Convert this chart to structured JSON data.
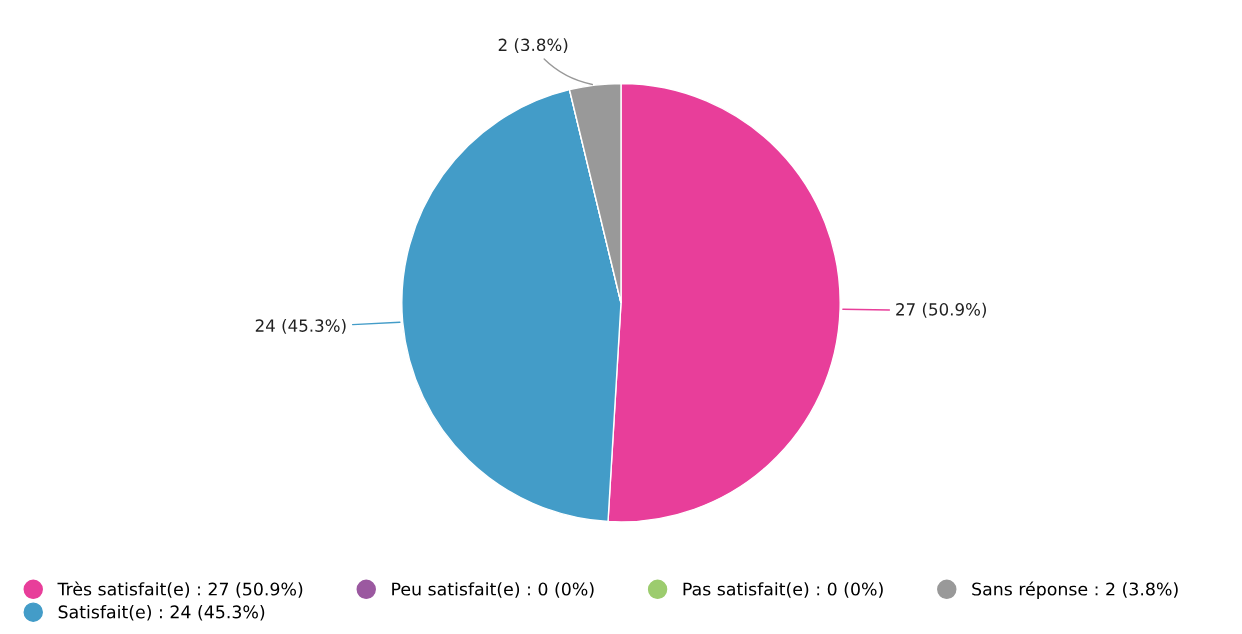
{
  "chart_data": {
    "type": "pie",
    "categories": [
      "Très satisfait(e) : 27 (50.9%)",
      "Satisfait(e) : 24 (45.3%)",
      "Peu satisfait(e) : 0 (0%)",
      "Pas satisfait(e) : 0 (0%)",
      "Sans réponse : 2 (3.8%)"
    ],
    "values": [
      27,
      24,
      0,
      0,
      2
    ],
    "colors": [
      "#e83e9a",
      "#439cc8",
      "#9b59a0",
      "#9ccc6e",
      "#999999"
    ],
    "value_labels": [
      "27 (50.9%)",
      "24 (45.3%)",
      null,
      null,
      "2 (3.8%)"
    ],
    "legend": "bottom"
  }
}
